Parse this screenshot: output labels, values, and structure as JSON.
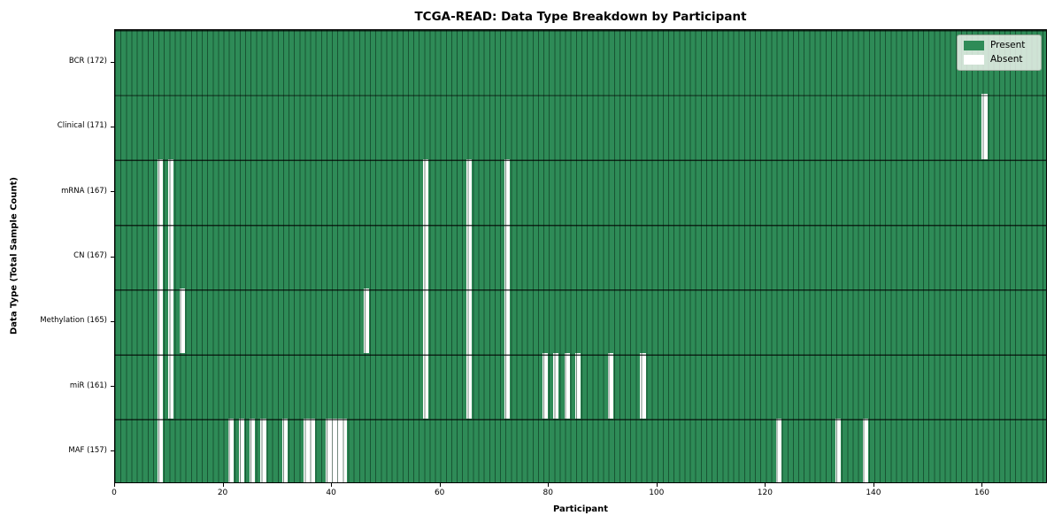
{
  "title": "TCGA-READ: Data Type Breakdown by Participant",
  "x_axis": {
    "label": "Participant",
    "ticks": [
      0,
      20,
      40,
      60,
      80,
      100,
      120,
      140,
      160
    ]
  },
  "y_axis": {
    "label": "Data Type (Total Sample Count)"
  },
  "legend": [
    {
      "label": "Present",
      "color": "#2e8b57"
    },
    {
      "label": "Absent",
      "color": "#ffffff"
    }
  ],
  "chart_data": {
    "type": "heatmap",
    "title": "TCGA-READ: Data Type Breakdown by Participant",
    "xlabel": "Participant",
    "ylabel": "Data Type (Total Sample Count)",
    "n_participants": 172,
    "x_range": [
      0,
      172
    ],
    "x_ticks": [
      0,
      20,
      40,
      60,
      80,
      100,
      120,
      140,
      160
    ],
    "grid": true,
    "legend_position": "upper right",
    "colors": {
      "present": "#2e8b57",
      "absent": "#ffffff"
    },
    "rows": [
      {
        "label": "BCR (172)",
        "data_type": "BCR",
        "present_count": 172,
        "absent_participants": []
      },
      {
        "label": "Clinical (171)",
        "data_type": "Clinical",
        "present_count": 171,
        "absent_participants": [
          160
        ]
      },
      {
        "label": "mRNA (167)",
        "data_type": "mRNA",
        "present_count": 167,
        "absent_participants": [
          8,
          10,
          57,
          65,
          72
        ]
      },
      {
        "label": "CN (167)",
        "data_type": "CN",
        "present_count": 167,
        "absent_participants": [
          8,
          10,
          57,
          65,
          72
        ]
      },
      {
        "label": "Methylation (165)",
        "data_type": "Methylation",
        "present_count": 165,
        "absent_participants": [
          8,
          10,
          12,
          46,
          57,
          65,
          72
        ]
      },
      {
        "label": "miR (161)",
        "data_type": "miR",
        "present_count": 161,
        "absent_participants": [
          8,
          10,
          57,
          65,
          72,
          79,
          81,
          83,
          85,
          91,
          97
        ]
      },
      {
        "label": "MAF (157)",
        "data_type": "MAF",
        "present_count": 157,
        "absent_participants": [
          8,
          21,
          23,
          25,
          27,
          31,
          35,
          36,
          39,
          40,
          41,
          42,
          122,
          133,
          138
        ]
      }
    ]
  }
}
